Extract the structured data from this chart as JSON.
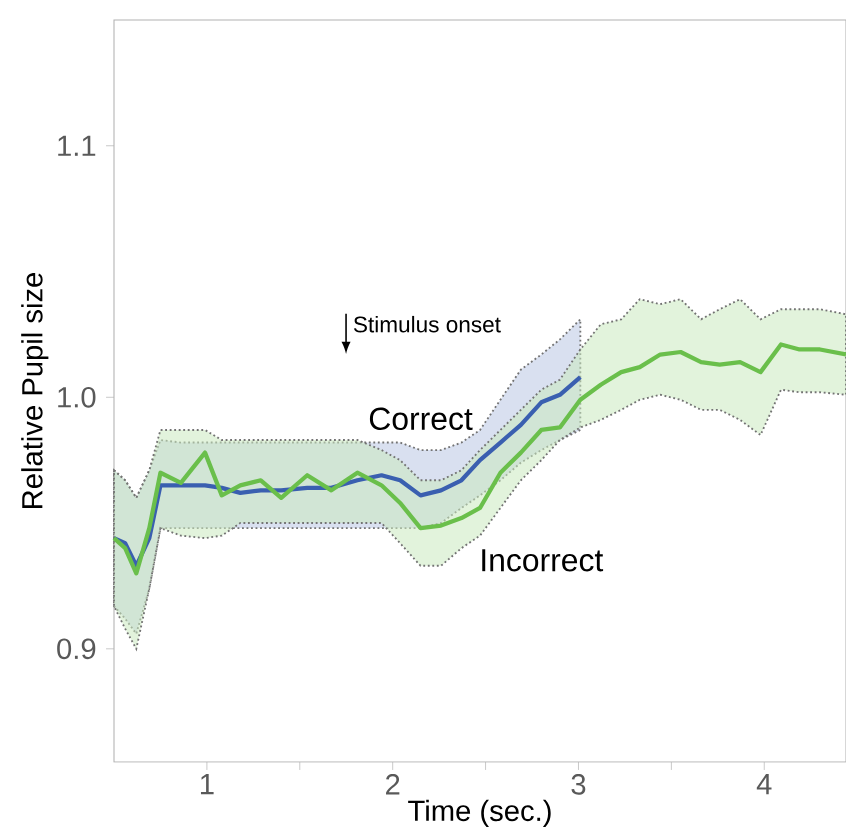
{
  "chart_data": {
    "type": "line",
    "xlabel": "Time (sec.)",
    "ylabel": "Relative Pupil size",
    "xlim": [
      0.5,
      4.44
    ],
    "ylim": [
      0.855,
      1.15
    ],
    "xticks": [
      1,
      {
        "value": 1.5,
        "label": null
      },
      2,
      {
        "value": 2.5,
        "label": null
      },
      3,
      {
        "value": 3.5,
        "label": null
      },
      4
    ],
    "yticks": [
      0.9,
      {
        "value": 1.0,
        "label": "1.0"
      },
      1.1
    ],
    "annotations": [
      "Stimulus onset"
    ],
    "series": [
      {
        "name": "Correct",
        "color": "#3a5fb0",
        "x": [
          0.5,
          0.56,
          0.62,
          0.69,
          0.75,
          0.86,
          0.99,
          1.08,
          1.18,
          1.29,
          1.4,
          1.54,
          1.67,
          1.81,
          1.94,
          2.04,
          2.15,
          2.26,
          2.37,
          2.47,
          2.58,
          2.69,
          2.8,
          2.9,
          3.01
        ],
        "values": [
          0.944,
          0.942,
          0.933,
          0.944,
          0.965,
          0.965,
          0.965,
          0.964,
          0.962,
          0.963,
          0.963,
          0.964,
          0.964,
          0.967,
          0.969,
          0.967,
          0.961,
          0.963,
          0.967,
          0.975,
          0.982,
          0.989,
          0.998,
          1.001,
          1.008
        ],
        "upper": [
          0.971,
          0.967,
          0.96,
          0.971,
          0.983,
          0.982,
          0.982,
          0.982,
          0.982,
          0.982,
          0.982,
          0.982,
          0.982,
          0.982,
          0.982,
          0.982,
          0.979,
          0.979,
          0.982,
          0.987,
          0.999,
          1.011,
          1.017,
          1.023,
          1.031
        ],
        "lower": [
          0.917,
          0.912,
          0.906,
          0.924,
          0.948,
          0.948,
          0.948,
          0.948,
          0.948,
          0.948,
          0.948,
          0.948,
          0.948,
          0.948,
          0.948,
          0.948,
          0.948,
          0.95,
          0.956,
          0.961,
          0.967,
          0.974,
          0.979,
          0.983,
          0.987
        ]
      },
      {
        "name": "Incorrect",
        "color": "#6abf4b",
        "x": [
          0.5,
          0.56,
          0.62,
          0.69,
          0.75,
          0.86,
          0.99,
          1.08,
          1.18,
          1.29,
          1.4,
          1.54,
          1.67,
          1.81,
          1.94,
          2.04,
          2.15,
          2.26,
          2.37,
          2.47,
          2.58,
          2.69,
          2.8,
          2.9,
          3.01,
          3.12,
          3.23,
          3.33,
          3.44,
          3.55,
          3.66,
          3.76,
          3.87,
          3.98,
          4.09,
          4.19,
          4.3,
          4.44
        ],
        "values": [
          0.944,
          0.94,
          0.93,
          0.948,
          0.97,
          0.966,
          0.978,
          0.961,
          0.965,
          0.967,
          0.96,
          0.969,
          0.963,
          0.97,
          0.965,
          0.958,
          0.948,
          0.949,
          0.952,
          0.956,
          0.97,
          0.978,
          0.987,
          0.988,
          0.999,
          1.005,
          1.01,
          1.012,
          1.017,
          1.018,
          1.014,
          1.013,
          1.014,
          1.01,
          1.021,
          1.019,
          1.019,
          1.017
        ],
        "upper": [
          0.971,
          0.967,
          0.96,
          0.971,
          0.987,
          0.987,
          0.987,
          0.983,
          0.983,
          0.983,
          0.983,
          0.983,
          0.983,
          0.983,
          0.979,
          0.975,
          0.967,
          0.967,
          0.971,
          0.979,
          0.987,
          0.995,
          1.003,
          1.007,
          1.019,
          1.029,
          1.031,
          1.039,
          1.037,
          1.039,
          1.031,
          1.035,
          1.039,
          1.031,
          1.035,
          1.035,
          1.035,
          1.033
        ],
        "lower": [
          0.917,
          0.908,
          0.9,
          0.924,
          0.948,
          0.945,
          0.944,
          0.945,
          0.95,
          0.95,
          0.95,
          0.95,
          0.95,
          0.95,
          0.95,
          0.942,
          0.933,
          0.933,
          0.94,
          0.945,
          0.956,
          0.967,
          0.975,
          0.983,
          0.988,
          0.991,
          0.995,
          0.999,
          1.001,
          0.999,
          0.995,
          0.995,
          0.991,
          0.985,
          1.003,
          1.002,
          1.002,
          1.001
        ]
      }
    ]
  }
}
